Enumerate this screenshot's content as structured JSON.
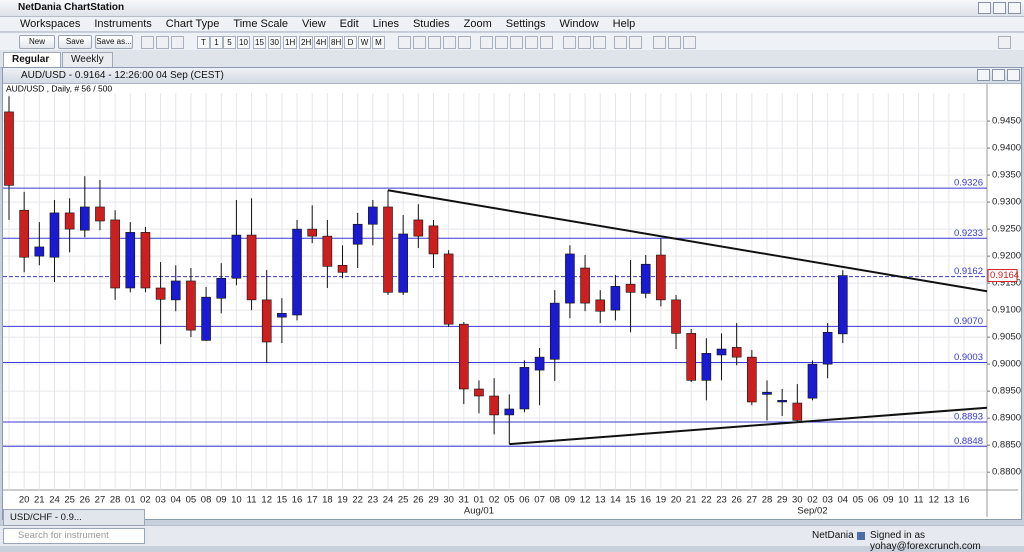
{
  "app": {
    "title": "NetDania ChartStation",
    "menu": [
      "Workspaces",
      "Instruments",
      "Chart Type",
      "Time Scale",
      "View",
      "Edit",
      "Lines",
      "Studies",
      "Zoom",
      "Settings",
      "Window",
      "Help"
    ],
    "buttons": [
      "New",
      "Save",
      "Save as..."
    ],
    "timeframes": [
      "T",
      "1",
      "5",
      "10",
      "15",
      "30",
      "1H",
      "2H",
      "4H",
      "8H",
      "D",
      "W",
      "M"
    ],
    "tabs": [
      "Regular",
      "Weekly"
    ],
    "minimized_window": "USD/CHF - 0.9...",
    "search_placeholder": "Search for instrument",
    "status_brand": "NetDania",
    "status_user": "Signed in as yohay@forexcrunch.com"
  },
  "chart_data": {
    "type": "candlestick",
    "title": "AUD/USD - 0.9164 - 12:26:00 04 Sep (CEST)",
    "subtitle": "AUD/USD , Daily, # 56 / 500",
    "categories": [
      null,
      "20",
      "21",
      "24",
      "25",
      "26",
      "27",
      "28",
      "01",
      "02",
      "03",
      "04",
      "05",
      "08",
      "09",
      "10",
      "11",
      "12",
      "15",
      "16",
      "17",
      "18",
      "19",
      "22",
      "23",
      "24",
      "25",
      "26",
      "29",
      "30",
      "31",
      "01",
      "02",
      "05",
      "06",
      "07",
      "08",
      "09",
      "12",
      "13",
      "14",
      "15",
      "16",
      "19",
      "20",
      "21",
      "22",
      "23",
      "26",
      "27",
      "28",
      "29",
      "30",
      "02",
      "03",
      "04",
      "05",
      "06",
      "09",
      "10",
      "11",
      "12",
      "13",
      "16"
    ],
    "period_labels": [
      null,
      null,
      null,
      null,
      null,
      null,
      null,
      null,
      null,
      null,
      null,
      null,
      null,
      null,
      null,
      null,
      null,
      null,
      null,
      null,
      null,
      null,
      null,
      null,
      null,
      null,
      null,
      null,
      null,
      null,
      null,
      "Aug/01",
      null,
      null,
      null,
      null,
      null,
      null,
      null,
      null,
      null,
      null,
      null,
      null,
      null,
      null,
      null,
      null,
      null,
      null,
      null,
      null,
      null,
      "Sep/02",
      null,
      null,
      null,
      null,
      null,
      null,
      null,
      null,
      null,
      null
    ],
    "open": [
      0.9467,
      0.9285,
      0.92,
      0.9198,
      0.928,
      0.9248,
      0.9291,
      0.9267,
      0.9141,
      0.9244,
      0.9141,
      0.9119,
      0.9154,
      0.9044,
      0.9122,
      0.9159,
      0.9239,
      0.9119,
      0.9087,
      0.9091,
      0.925,
      0.9237,
      0.9183,
      0.9222,
      0.9259,
      0.9291,
      0.9133,
      0.9267,
      0.9256,
      0.9204,
      0.9074,
      0.8954,
      0.8941,
      0.8906,
      0.8917,
      0.8989,
      0.9009,
      0.9113,
      0.9178,
      0.9119,
      0.91,
      0.9148,
      0.9131,
      0.9202,
      0.9119,
      0.9057,
      0.897,
      0.9017,
      0.9031,
      0.9013,
      0.8944,
      0.893,
      0.8928,
      0.8937,
      0.9,
      0.9056,
      null,
      null,
      null,
      null,
      null,
      null,
      null,
      null
    ],
    "high": [
      0.9496,
      0.9319,
      0.9263,
      0.9304,
      0.9307,
      0.9348,
      0.9341,
      0.9285,
      0.9263,
      0.9254,
      0.9189,
      0.9183,
      0.9178,
      0.9143,
      0.9187,
      0.9304,
      0.9307,
      0.9174,
      0.9122,
      0.9267,
      0.9294,
      0.9267,
      0.922,
      0.928,
      0.9304,
      0.9322,
      0.9276,
      0.9296,
      0.9267,
      0.9211,
      0.9078,
      0.897,
      0.8974,
      0.8944,
      0.9007,
      0.903,
      0.9137,
      0.922,
      0.9202,
      0.9137,
      0.9165,
      0.9193,
      0.9202,
      0.9233,
      0.9128,
      0.9065,
      0.9048,
      0.9057,
      0.9076,
      0.9026,
      0.897,
      0.8954,
      0.8963,
      0.9007,
      0.9076,
      0.9174,
      null,
      null,
      null,
      null,
      null,
      null,
      null,
      null
    ],
    "low": [
      0.9267,
      0.917,
      0.9183,
      0.9152,
      0.9207,
      0.9235,
      0.9248,
      0.9119,
      0.9133,
      0.9133,
      0.9037,
      0.9098,
      0.905,
      0.9043,
      0.9094,
      0.9146,
      0.91,
      0.9002,
      0.9039,
      0.9081,
      0.9224,
      0.9141,
      0.9159,
      0.9178,
      0.922,
      0.9128,
      0.9128,
      0.9215,
      0.9178,
      0.9069,
      0.8926,
      0.8909,
      0.887,
      0.8852,
      0.8911,
      0.8924,
      0.8969,
      0.9085,
      0.9098,
      0.9076,
      0.9081,
      0.9059,
      0.9122,
      0.9107,
      0.9028,
      0.8967,
      0.8933,
      0.897,
      0.8998,
      0.8924,
      0.8896,
      0.8904,
      0.8894,
      0.8933,
      0.8974,
      0.9039,
      null,
      null,
      null,
      null,
      null,
      null,
      null,
      null
    ],
    "close": [
      0.9331,
      0.9198,
      0.9217,
      0.928,
      0.925,
      0.9291,
      0.9265,
      0.9141,
      0.9244,
      0.9141,
      0.912,
      0.9154,
      0.9063,
      0.9124,
      0.9159,
      0.9239,
      0.9119,
      0.9041,
      0.9094,
      0.925,
      0.9237,
      0.9181,
      0.917,
      0.9259,
      0.9291,
      0.9133,
      0.9241,
      0.9237,
      0.9204,
      0.9074,
      0.8954,
      0.8941,
      0.8906,
      0.8917,
      0.8994,
      0.9013,
      0.9113,
      0.9204,
      0.9113,
      0.9098,
      0.9144,
      0.9133,
      0.9185,
      0.9119,
      0.9057,
      0.897,
      0.902,
      0.9028,
      0.9013,
      0.893,
      0.8948,
      0.8933,
      0.8896,
      0.9,
      0.9059,
      0.9164,
      null,
      null,
      null,
      null,
      null,
      null,
      null,
      null
    ],
    "up_color": "#1a1ad0",
    "down_color": "#cc1f1f",
    "ylim": [
      0.8767,
      0.9502
    ],
    "yticks": [
      {
        "value": 0.945,
        "label": "0.9450"
      },
      {
        "value": 0.94,
        "label": "0.9400"
      },
      {
        "value": 0.935,
        "label": "0.9350"
      },
      {
        "value": 0.93,
        "label": "0.9300"
      },
      {
        "value": 0.925,
        "label": "0.9250"
      },
      {
        "value": 0.92,
        "label": "0.9200"
      },
      {
        "value": 0.915,
        "label": "0.9150"
      },
      {
        "value": 0.91,
        "label": "0.9100"
      },
      {
        "value": 0.905,
        "label": "0.9050"
      },
      {
        "value": 0.9,
        "label": "0.9000"
      },
      {
        "value": 0.895,
        "label": "0.8950"
      },
      {
        "value": 0.89,
        "label": "0.8900"
      },
      {
        "value": 0.885,
        "label": "0.8850"
      },
      {
        "value": 0.88,
        "label": "0.8800"
      }
    ],
    "grid": true,
    "level_color": "#3a3ad6",
    "levels": [
      {
        "value": 0.9326
      },
      {
        "value": 0.9233
      },
      {
        "value": 0.9162,
        "style": "dashed"
      },
      {
        "value": 0.907,
        "label": "0.9070"
      },
      {
        "value": 0.9003
      },
      {
        "value": 0.8893
      },
      {
        "value": 0.8848
      }
    ],
    "last_price": 0.9164,
    "trendlines": [
      {
        "x": [
          25,
          55
        ],
        "y": [
          0.9322,
          0.918
        ]
      },
      {
        "x": [
          33,
          55
        ],
        "y": [
          0.8852,
          0.8899
        ]
      }
    ]
  }
}
